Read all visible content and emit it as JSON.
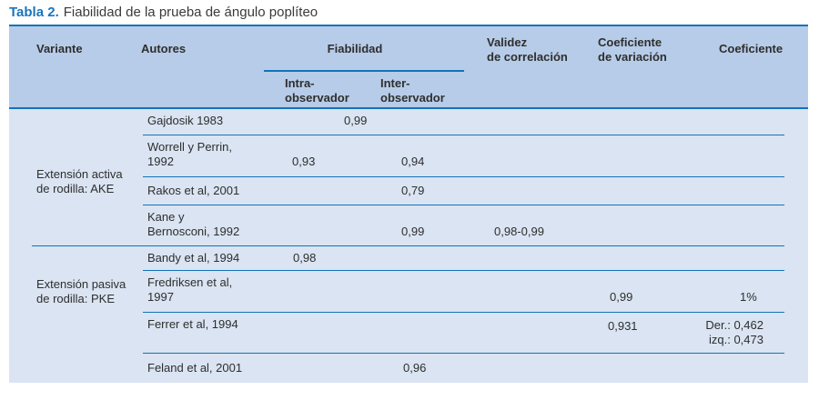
{
  "title": {
    "label": "Tabla 2.",
    "text": "Fiabilidad de la prueba de ángulo poplíteo"
  },
  "colors": {
    "accent_blue": "#1a75bc",
    "header_bg": "#b7cce8",
    "body_bg": "#dae4f2",
    "line_blue": "#1273b8",
    "text": "#2e2e2e"
  },
  "table": {
    "header": {
      "variante": "Variante",
      "autores": "Autores",
      "fiabilidad": "Fiabilidad",
      "intra": "Intra-\nobservador",
      "inter": "Inter-\nobservador",
      "validez": "Validez\nde correlación",
      "coef_variacion": "Coeficiente\nde variación",
      "coeficiente": "Coeficiente"
    },
    "groups": [
      {
        "variant": "Extensión activa\nde rodilla: AKE",
        "rows": [
          {
            "autor": "Gajdosik 1983",
            "fiabilidad": "0,99"
          },
          {
            "autor": "Worrell y Perrin,\n1992",
            "intra": "0,93",
            "inter": "0,94"
          },
          {
            "autor": "Rakos et al, 2001",
            "inter": "0,79"
          },
          {
            "autor": "Kane y\nBernosconi, 1992",
            "inter": "0,99",
            "validez": "0,98-0,99"
          }
        ]
      },
      {
        "variant": "Extensión pasiva\nde rodilla: PKE",
        "rows": [
          {
            "autor": "Bandy et al, 1994",
            "intra": "0,98"
          },
          {
            "autor": "Fredriksen et al,\n1997",
            "coef_variacion": "0,99",
            "coeficiente": "1%"
          },
          {
            "autor": "Ferrer et al, 1994",
            "coef_variacion": "0,931",
            "coeficiente": "Der.: 0,462\nizq.: 0,473"
          },
          {
            "autor": "Feland et al, 2001",
            "inter": "0,96"
          }
        ]
      }
    ]
  }
}
